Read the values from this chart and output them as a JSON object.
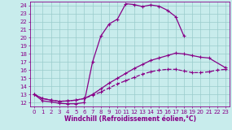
{
  "xlabel": "Windchill (Refroidissement éolien,°C)",
  "xlim": [
    -0.5,
    23.5
  ],
  "ylim": [
    11.5,
    24.5
  ],
  "xticks": [
    0,
    1,
    2,
    3,
    4,
    5,
    6,
    7,
    8,
    9,
    10,
    11,
    12,
    13,
    14,
    15,
    16,
    17,
    18,
    19,
    20,
    21,
    22,
    23
  ],
  "yticks": [
    12,
    13,
    14,
    15,
    16,
    17,
    18,
    19,
    20,
    21,
    22,
    23,
    24
  ],
  "bg_color": "#c8ecec",
  "line_color": "#880088",
  "grid_color": "#99cccc",
  "curve1_x": [
    0,
    1,
    2,
    3,
    4,
    5,
    6,
    7,
    8,
    9,
    10,
    11,
    12,
    13,
    14,
    15,
    16,
    17,
    18
  ],
  "curve1_y": [
    13.0,
    12.2,
    12.1,
    11.9,
    11.85,
    11.85,
    12.0,
    17.0,
    20.2,
    21.7,
    22.3,
    24.2,
    24.1,
    23.85,
    24.05,
    23.9,
    23.4,
    22.6,
    20.2
  ],
  "curve2_x": [
    0,
    1,
    2,
    3,
    4,
    5,
    6,
    7,
    8,
    9,
    10,
    11,
    12,
    13,
    14,
    15,
    16,
    17,
    18,
    19,
    20,
    21,
    23
  ],
  "curve2_y": [
    13.0,
    12.5,
    12.3,
    12.15,
    12.2,
    12.3,
    12.5,
    13.0,
    13.7,
    14.4,
    15.0,
    15.6,
    16.2,
    16.7,
    17.2,
    17.5,
    17.8,
    18.1,
    18.0,
    17.8,
    17.6,
    17.5,
    16.3
  ],
  "curve3_x": [
    0,
    1,
    2,
    3,
    4,
    5,
    6,
    7,
    8,
    9,
    10,
    11,
    12,
    13,
    14,
    15,
    16,
    17,
    18,
    19,
    20,
    21,
    22,
    23
  ],
  "curve3_y": [
    13.0,
    12.5,
    12.3,
    12.15,
    12.2,
    12.3,
    12.5,
    12.9,
    13.3,
    13.8,
    14.3,
    14.7,
    15.1,
    15.5,
    15.8,
    16.0,
    16.1,
    16.1,
    15.9,
    15.7,
    15.7,
    15.8,
    16.0,
    16.1
  ],
  "marker": "+",
  "markersize": 3,
  "linewidth": 0.9,
  "tick_fontsize": 5,
  "label_fontsize": 5.5
}
